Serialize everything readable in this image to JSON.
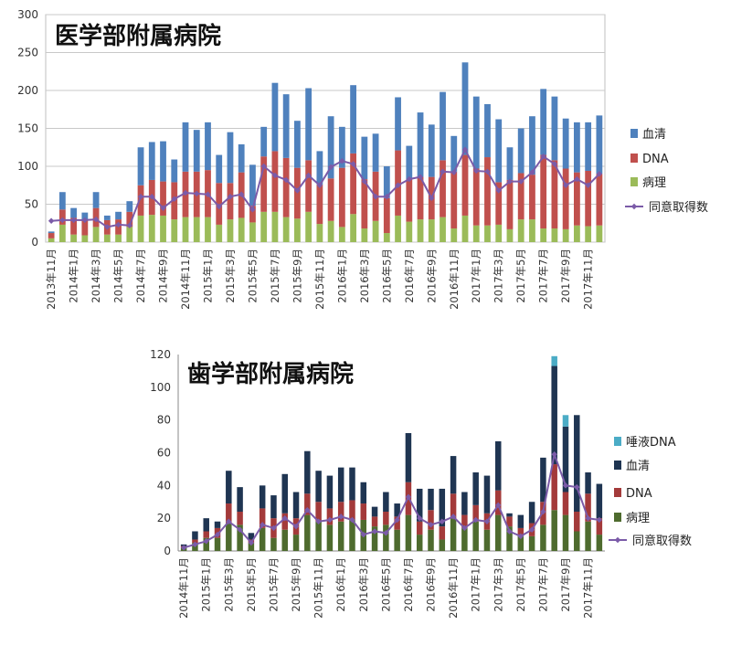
{
  "chart_data": [
    {
      "type": "bar",
      "title": "医学部附属病院",
      "ylim": [
        0,
        300
      ],
      "yticks": [
        0,
        50,
        100,
        150,
        200,
        250,
        300
      ],
      "grid": true,
      "legend_position": "right",
      "categories": [
        "2013年11月",
        "2013年12月",
        "2014年1月",
        "2014年2月",
        "2014年3月",
        "2014年4月",
        "2014年5月",
        "2014年6月",
        "2014年7月",
        "2014年8月",
        "2014年9月",
        "2014年10月",
        "2014年11月",
        "2014年12月",
        "2015年1月",
        "2015年2月",
        "2015年3月",
        "2015年4月",
        "2015年5月",
        "2015年6月",
        "2015年7月",
        "2015年8月",
        "2015年9月",
        "2015年10月",
        "2015年11月",
        "2015年12月",
        "2016年1月",
        "2016年2月",
        "2016年3月",
        "2016年4月",
        "2016年5月",
        "2016年6月",
        "2016年7月",
        "2016年8月",
        "2016年9月",
        "2016年10月",
        "2016年11月",
        "2016年12月",
        "2017年1月",
        "2017年2月",
        "2017年3月",
        "2017年4月",
        "2017年5月",
        "2017年6月",
        "2017年7月",
        "2017年8月",
        "2017年9月",
        "2017年10月",
        "2017年11月",
        "2017年12月"
      ],
      "xtick_labels": [
        "2013年11月",
        "2014年1月",
        "2014年3月",
        "2014年5月",
        "2014年7月",
        "2014年9月",
        "2014年11月",
        "2015年1月",
        "2015年3月",
        "2015年5月",
        "2015年7月",
        "2015年9月",
        "2015年11月",
        "2016年1月",
        "2016年3月",
        "2016年5月",
        "2016年7月",
        "2016年9月",
        "2016年11月",
        "2017年1月",
        "2017年3月",
        "2017年5月",
        "2017年7月",
        "2017年9月",
        "2017年11月"
      ],
      "series": [
        {
          "name": "血清",
          "color": "#4f81bd",
          "kind": "bar",
          "values": [
            2,
            23,
            13,
            9,
            21,
            6,
            10,
            14,
            50,
            50,
            53,
            30,
            65,
            55,
            63,
            37,
            67,
            37,
            54,
            39,
            90,
            84,
            62,
            95,
            44,
            82,
            54,
            90,
            56,
            50,
            42,
            70,
            44,
            85,
            69,
            90,
            47,
            122,
            95,
            70,
            83,
            43,
            59,
            77,
            87,
            84,
            66,
            66,
            64,
            77
          ]
        },
        {
          "name": "DNA",
          "color": "#c0504d",
          "kind": "bar",
          "values": [
            7,
            20,
            22,
            21,
            25,
            19,
            20,
            20,
            40,
            46,
            45,
            49,
            60,
            60,
            62,
            55,
            48,
            60,
            22,
            73,
            80,
            78,
            67,
            68,
            52,
            56,
            78,
            80,
            65,
            65,
            46,
            86,
            56,
            56,
            56,
            75,
            75,
            80,
            75,
            90,
            56,
            65,
            61,
            59,
            97,
            90,
            80,
            70,
            73,
            68
          ]
        },
        {
          "name": "病理",
          "color": "#9bbb59",
          "kind": "bar",
          "values": [
            5,
            23,
            10,
            9,
            20,
            10,
            10,
            20,
            35,
            36,
            35,
            30,
            33,
            33,
            33,
            23,
            30,
            32,
            26,
            40,
            40,
            33,
            31,
            40,
            24,
            28,
            20,
            37,
            18,
            28,
            12,
            35,
            27,
            30,
            30,
            33,
            18,
            35,
            22,
            22,
            23,
            17,
            30,
            30,
            18,
            18,
            17,
            22,
            21,
            22
          ]
        },
        {
          "name": "同意取得数",
          "color": "#7b5ba8",
          "kind": "line",
          "values": [
            28,
            29,
            29,
            29,
            30,
            20,
            23,
            22,
            60,
            60,
            45,
            57,
            65,
            64,
            63,
            47,
            60,
            63,
            43,
            100,
            88,
            82,
            68,
            88,
            75,
            99,
            107,
            103,
            80,
            60,
            60,
            75,
            83,
            86,
            58,
            93,
            92,
            122,
            94,
            93,
            68,
            80,
            80,
            92,
            113,
            103,
            75,
            83,
            75,
            90
          ]
        }
      ]
    },
    {
      "type": "bar",
      "title": "歯学部附属病院",
      "ylim": [
        0,
        120
      ],
      "yticks": [
        0,
        20,
        40,
        60,
        80,
        100,
        120
      ],
      "grid": false,
      "legend_position": "right",
      "categories": [
        "2014年11月",
        "2014年12月",
        "2015年1月",
        "2015年2月",
        "2015年3月",
        "2015年4月",
        "2015年5月",
        "2015年6月",
        "2015年7月",
        "2015年8月",
        "2015年9月",
        "2015年10月",
        "2015年11月",
        "2015年12月",
        "2016年1月",
        "2016年2月",
        "2016年3月",
        "2016年4月",
        "2016年5月",
        "2016年6月",
        "2016年7月",
        "2016年8月",
        "2016年9月",
        "2016年10月",
        "2016年11月",
        "2016年12月",
        "2017年1月",
        "2017年2月",
        "2017年3月",
        "2017年4月",
        "2017年5月",
        "2017年6月",
        "2017年7月",
        "2017年8月",
        "2017年9月",
        "2017年10月",
        "2017年11月",
        "2017年12月"
      ],
      "xtick_labels": [
        "2014年11月",
        "2015年1月",
        "2015年3月",
        "2015年5月",
        "2015年7月",
        "2015年9月",
        "2015年11月",
        "2016年1月",
        "2016年3月",
        "2016年5月",
        "2016年7月",
        "2016年9月",
        "2016年11月",
        "2017年1月",
        "2017年3月",
        "2017年5月",
        "2017年7月",
        "2017年9月",
        "2017年11月"
      ],
      "series": [
        {
          "name": "唾液DNA",
          "color": "#4bacc6",
          "kind": "bar",
          "values": [
            0,
            0,
            0,
            0,
            0,
            0,
            0,
            0,
            0,
            0,
            0,
            0,
            0,
            0,
            0,
            0,
            0,
            0,
            0,
            0,
            0,
            0,
            0,
            0,
            0,
            0,
            0,
            0,
            0,
            0,
            0,
            0,
            0,
            6,
            7,
            0,
            0,
            0
          ]
        },
        {
          "name": "血清",
          "color": "#1f3552",
          "kind": "bar",
          "values": [
            1,
            5,
            8,
            4,
            20,
            15,
            4,
            14,
            14,
            24,
            16,
            26,
            19,
            20,
            21,
            20,
            13,
            6,
            12,
            8,
            30,
            20,
            13,
            23,
            23,
            14,
            20,
            23,
            30,
            2,
            8,
            13,
            27,
            60,
            40,
            59,
            13,
            21
          ]
        },
        {
          "name": "DNA",
          "color": "#a33a3a",
          "kind": "bar",
          "values": [
            1,
            2,
            4,
            6,
            12,
            8,
            2,
            12,
            12,
            10,
            10,
            13,
            12,
            10,
            12,
            12,
            10,
            6,
            8,
            8,
            20,
            8,
            12,
            8,
            15,
            8,
            10,
            10,
            15,
            6,
            4,
            8,
            14,
            28,
            14,
            12,
            17,
            10
          ]
        },
        {
          "name": "病理",
          "color": "#4e6b2e",
          "kind": "bar",
          "values": [
            2,
            5,
            8,
            8,
            17,
            16,
            5,
            14,
            8,
            13,
            10,
            22,
            18,
            16,
            18,
            19,
            19,
            15,
            16,
            13,
            22,
            10,
            13,
            7,
            20,
            14,
            18,
            13,
            22,
            15,
            10,
            9,
            16,
            25,
            22,
            12,
            18,
            10
          ]
        },
        {
          "name": "同意取得数",
          "color": "#7b5ba8",
          "kind": "line",
          "values": [
            2,
            4,
            6,
            10,
            18,
            13,
            5,
            16,
            14,
            20,
            15,
            25,
            18,
            19,
            21,
            19,
            10,
            12,
            11,
            19,
            33,
            20,
            16,
            18,
            21,
            14,
            19,
            18,
            28,
            12,
            9,
            13,
            24,
            59,
            40,
            39,
            20,
            19
          ]
        }
      ]
    }
  ]
}
